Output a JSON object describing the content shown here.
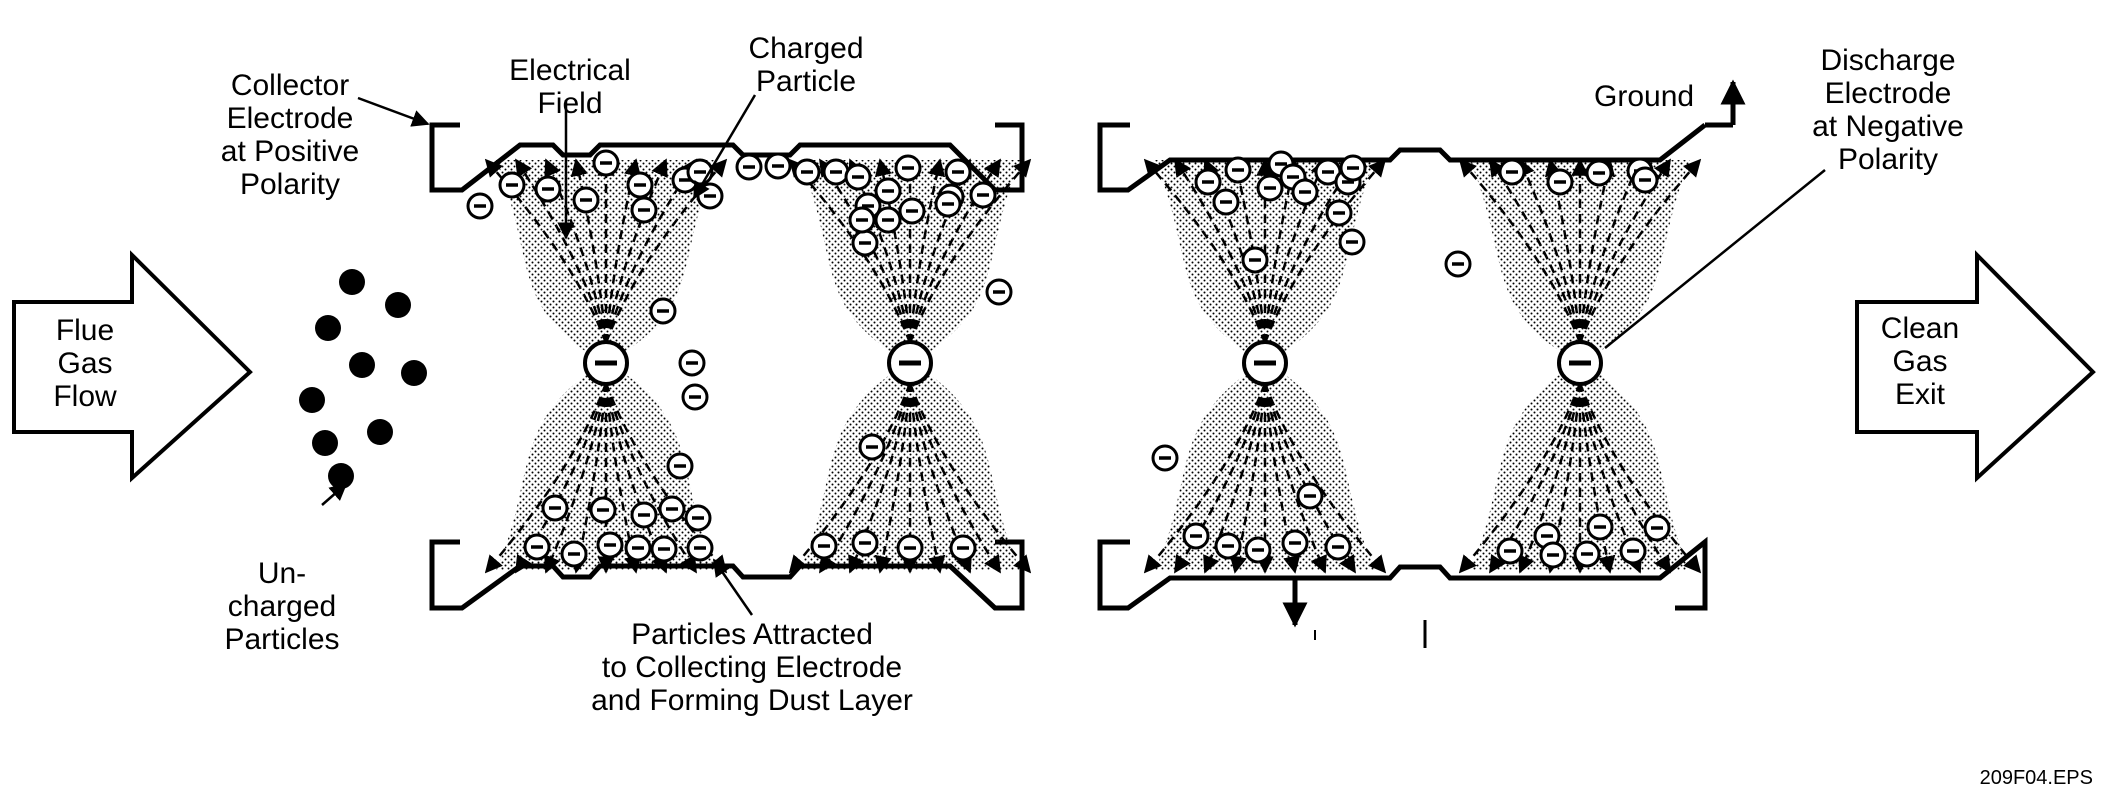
{
  "labels": {
    "collector": [
      "Collector",
      "Electrode",
      "at Positive",
      "Polarity"
    ],
    "field": [
      "Electrical",
      "Field"
    ],
    "charged": [
      "Charged",
      "Particle"
    ],
    "ground": "Ground",
    "discharge": [
      "Discharge",
      "Electrode",
      "at Negative",
      "Polarity"
    ],
    "flue": [
      "Flue",
      "Gas",
      "Flow"
    ],
    "clean": [
      "Clean",
      "Gas",
      "Exit"
    ],
    "uncharged": [
      "Un-",
      "charged",
      "Particles"
    ],
    "attracted": [
      "Particles Attracted",
      "to Collecting Electrode",
      "and Forming Dust Layer"
    ],
    "figure_id": "209F04.EPS"
  },
  "colors": {
    "ink": "#000000",
    "paper": "#ffffff",
    "dust": "#d9d9d9"
  },
  "icons": {
    "charged_particle": "circled-minus",
    "uncharged_particle": "filled-circle",
    "discharge_wire": "circled-minus",
    "flow_arrow": "block-arrow-right",
    "ground_arrow": "arrow-up"
  }
}
